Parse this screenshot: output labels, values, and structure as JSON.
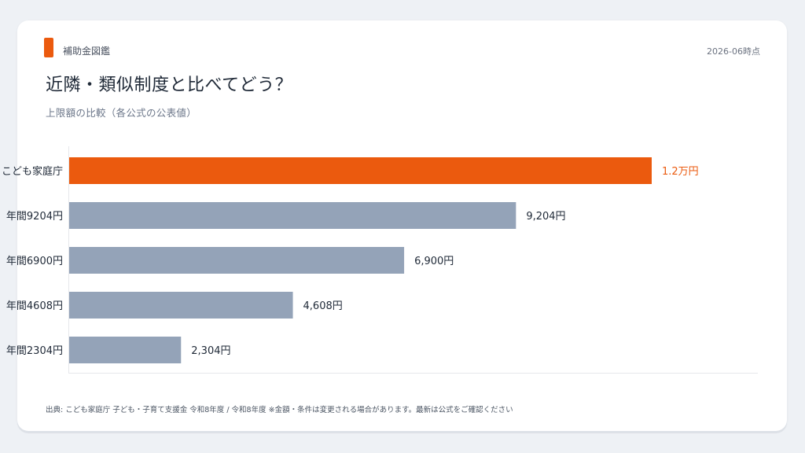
{
  "header": {
    "brand": "補助金図鑑",
    "date": "2026-06時点",
    "title": "近隣・類似制度と比べてどう？",
    "subtitle": "上限額の比較（各公式の公表値）"
  },
  "footer": {
    "source": "出典: こども家庭庁 子ども・子育て支援金 令和8年度 / 令和8年度 ※金額・条件は変更される場合があります。最新は公式をご確認ください"
  },
  "colors": {
    "accent": "#eb5a0e",
    "bar": "#94a3b8",
    "background": "#eef1f5"
  },
  "chart_data": {
    "type": "bar",
    "orientation": "horizontal",
    "categories": [
      "こども家庭庁",
      "年間9204円",
      "年間6900円",
      "年間4608円",
      "年間2304円"
    ],
    "values": [
      12000,
      9204,
      6900,
      4608,
      2304
    ],
    "data_labels": [
      "1.2万円",
      "9,204円",
      "6,900円",
      "4,608円",
      "2,304円"
    ],
    "highlight_index": 0,
    "xlim": [
      0,
      12000
    ],
    "grid": false,
    "legend": "none"
  }
}
